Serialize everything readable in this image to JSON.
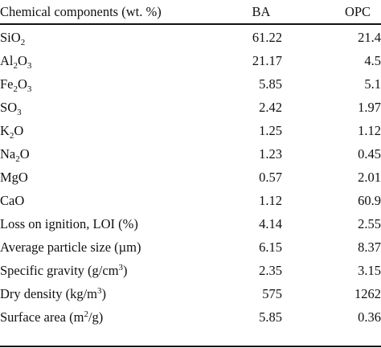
{
  "table": {
    "headers": {
      "components": "Chemical components (wt. %)",
      "ba": "BA",
      "opc": "OPC"
    },
    "rows": [
      {
        "label_parts": [
          "Si",
          "O",
          "2"
        ],
        "ba": "61.22",
        "opc": "21.4"
      },
      {
        "label_parts": [
          "Al",
          "2",
          "O",
          "3"
        ],
        "ba": "21.17",
        "opc": "4.5"
      },
      {
        "label_parts": [
          "Fe",
          "2",
          "O",
          "3"
        ],
        "ba": "5.85",
        "opc": "5.1"
      },
      {
        "label_parts": [
          "S",
          "O",
          "3"
        ],
        "ba": "2.42",
        "opc": "1.97"
      },
      {
        "label_parts": [
          "K",
          "2",
          "O"
        ],
        "ba": "1.25",
        "opc": "1.12"
      },
      {
        "label_parts": [
          "Na",
          "2",
          "O"
        ],
        "ba": "1.23",
        "opc": "0.45"
      },
      {
        "label": "MgO",
        "ba": "0.57",
        "opc": "2.01"
      },
      {
        "label": "CaO",
        "ba": "1.12",
        "opc": "60.9"
      },
      {
        "label": "Loss on ignition, LOI (%)",
        "ba": "4.14",
        "opc": "2.55"
      },
      {
        "label": "Average particle size (µm)",
        "ba": "6.15",
        "opc": "8.37"
      },
      {
        "label_parts": [
          "Specific gravity (g/cm",
          "3",
          ")"
        ],
        "ba": "2.35",
        "opc": "3.15"
      },
      {
        "label_parts": [
          "Dry density (kg/m",
          "3",
          ")"
        ],
        "ba": "575",
        "opc": "1262"
      },
      {
        "label_parts": [
          "Surface area (m",
          "2",
          "/g)"
        ],
        "ba": "5.85",
        "opc": "0.36"
      }
    ]
  }
}
